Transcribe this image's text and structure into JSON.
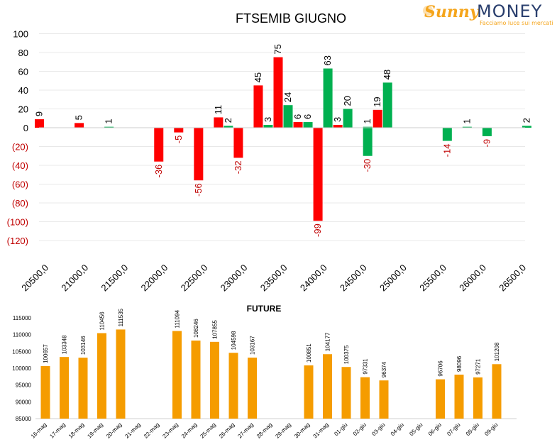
{
  "logo": {
    "brand_part1": "Sunny",
    "brand_part2": "MONEY",
    "tagline": "Facciamo luce sui mercati",
    "colors": {
      "sunny": "#f5a51c",
      "money": "#2a3f6e"
    }
  },
  "colors": {
    "positive": "#00b050",
    "negative": "#ff0000",
    "future": "#f59c00",
    "negative_label": "#c00000",
    "text": "#000000",
    "grid": "#e8e8e8"
  },
  "chart_data": [
    {
      "type": "bar",
      "title": "FTSEMIB GIUGNO",
      "xlabel": "",
      "ylabel": "",
      "ylim": [
        -120,
        100
      ],
      "yticks": [
        "100",
        "80",
        "60",
        "40",
        "20",
        "0",
        "(20)",
        "(40)",
        "(60)",
        "(80)",
        "(100)",
        "(120)"
      ],
      "ytick_values": [
        100,
        80,
        60,
        40,
        20,
        0,
        -20,
        -40,
        -60,
        -80,
        -100,
        -120
      ],
      "categories": [
        "20500,0",
        "21000,0",
        "21500,0",
        "22000,0",
        "22500,0",
        "23000,0",
        "23500,0",
        "24000,0",
        "24500,0",
        "25000,0",
        "25500,0",
        "26000,0",
        "26500,0"
      ],
      "x_range": [
        20500,
        26500
      ],
      "grid": true,
      "series": [
        {
          "color": "red",
          "points": [
            {
              "x": 20500,
              "y": 9
            },
            {
              "x": 21000,
              "y": 5
            },
            {
              "x": 22000,
              "y": -36
            },
            {
              "x": 22250,
              "y": -5
            },
            {
              "x": 22500,
              "y": -56
            },
            {
              "x": 22750,
              "y": 11
            },
            {
              "x": 23000,
              "y": -32
            },
            {
              "x": 23250,
              "y": 45
            },
            {
              "x": 23500,
              "y": 75
            },
            {
              "x": 23750,
              "y": 6
            },
            {
              "x": 24000,
              "y": -99
            },
            {
              "x": 24250,
              "y": 3
            },
            {
              "x": 24750,
              "y": 19
            }
          ]
        },
        {
          "color": "green",
          "points": [
            {
              "x": 21250,
              "y": 1
            },
            {
              "x": 22750,
              "y": 2
            },
            {
              "x": 23250,
              "y": 3
            },
            {
              "x": 23500,
              "y": 24
            },
            {
              "x": 23750,
              "y": 6
            },
            {
              "x": 24000,
              "y": 63
            },
            {
              "x": 24250,
              "y": 20
            },
            {
              "x": 24500,
              "y": 1
            },
            {
              "x": 24500,
              "y": -30
            },
            {
              "x": 24750,
              "y": 48
            },
            {
              "x": 25500,
              "y": -14
            },
            {
              "x": 25750,
              "y": 1
            },
            {
              "x": 26000,
              "y": -9
            },
            {
              "x": 26500,
              "y": 2
            }
          ]
        }
      ]
    },
    {
      "type": "bar",
      "title": "FUTURE",
      "xlabel": "",
      "ylabel": "",
      "ylim": [
        85000,
        115000
      ],
      "yticks": [
        "115000",
        "110000",
        "105000",
        "100000",
        "95000",
        "90000",
        "85000"
      ],
      "ytick_values": [
        115000,
        110000,
        105000,
        100000,
        95000,
        90000,
        85000
      ],
      "categories": [
        "16-mag",
        "17-mag",
        "18-mag",
        "19-mag",
        "20-mag",
        "21-mag",
        "22-mag",
        "23-mag",
        "24-mag",
        "25-mag",
        "26-mag",
        "27-mag",
        "28-mag",
        "29-mag",
        "30-mag",
        "31-mag",
        "01-giu",
        "02-giu",
        "03-giu",
        "04-giu",
        "05-giu",
        "06-giu",
        "07-giu",
        "08-giu",
        "09-giu"
      ],
      "values": [
        100657,
        103348,
        103146,
        110456,
        111535,
        null,
        null,
        111094,
        108246,
        107855,
        104598,
        103167,
        null,
        null,
        100851,
        104177,
        100375,
        97331,
        96374,
        null,
        null,
        96706,
        98096,
        97271,
        101208
      ],
      "grid": false
    }
  ]
}
